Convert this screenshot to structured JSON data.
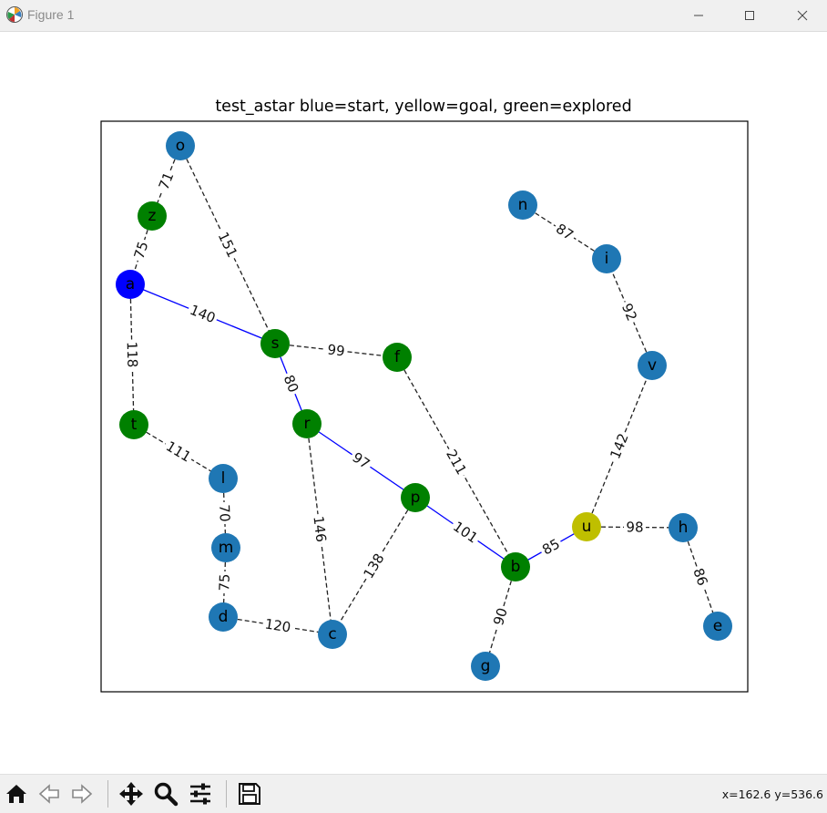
{
  "window": {
    "title": "Figure 1"
  },
  "toolbar": {
    "coords": "x=162.6 y=536.6"
  },
  "figure": {
    "title": "test_astar blue=start, yellow=goal, green=explored",
    "colors": {
      "default": "#1f77b4",
      "start": "#0000ff",
      "goal": "#bfbf00",
      "explored": "#008000",
      "path_edge": "#0000ff",
      "edge": "#222222"
    },
    "nodes": [
      {
        "id": "o",
        "state": "default"
      },
      {
        "id": "z",
        "state": "explored"
      },
      {
        "id": "a",
        "state": "start"
      },
      {
        "id": "s",
        "state": "explored"
      },
      {
        "id": "f",
        "state": "explored"
      },
      {
        "id": "t",
        "state": "explored"
      },
      {
        "id": "r",
        "state": "explored"
      },
      {
        "id": "l",
        "state": "default"
      },
      {
        "id": "m",
        "state": "default"
      },
      {
        "id": "d",
        "state": "default"
      },
      {
        "id": "c",
        "state": "default"
      },
      {
        "id": "p",
        "state": "explored"
      },
      {
        "id": "b",
        "state": "explored"
      },
      {
        "id": "g",
        "state": "default"
      },
      {
        "id": "u",
        "state": "goal"
      },
      {
        "id": "h",
        "state": "default"
      },
      {
        "id": "e",
        "state": "default"
      },
      {
        "id": "n",
        "state": "default"
      },
      {
        "id": "i",
        "state": "default"
      },
      {
        "id": "v",
        "state": "default"
      }
    ],
    "edges": [
      {
        "from": "o",
        "to": "z",
        "weight": "71",
        "path": false
      },
      {
        "from": "z",
        "to": "a",
        "weight": "75",
        "path": false
      },
      {
        "from": "o",
        "to": "s",
        "weight": "151",
        "path": false
      },
      {
        "from": "a",
        "to": "s",
        "weight": "140",
        "path": true
      },
      {
        "from": "a",
        "to": "t",
        "weight": "118",
        "path": false
      },
      {
        "from": "s",
        "to": "f",
        "weight": "99",
        "path": false
      },
      {
        "from": "s",
        "to": "r",
        "weight": "80",
        "path": true
      },
      {
        "from": "t",
        "to": "l",
        "weight": "111",
        "path": false
      },
      {
        "from": "l",
        "to": "m",
        "weight": "70",
        "path": false
      },
      {
        "from": "m",
        "to": "d",
        "weight": "75",
        "path": false
      },
      {
        "from": "d",
        "to": "c",
        "weight": "120",
        "path": false
      },
      {
        "from": "r",
        "to": "c",
        "weight": "146",
        "path": false
      },
      {
        "from": "r",
        "to": "p",
        "weight": "97",
        "path": true
      },
      {
        "from": "p",
        "to": "c",
        "weight": "138",
        "path": false
      },
      {
        "from": "p",
        "to": "b",
        "weight": "101",
        "path": true
      },
      {
        "from": "f",
        "to": "b",
        "weight": "211",
        "path": false
      },
      {
        "from": "b",
        "to": "g",
        "weight": "90",
        "path": false
      },
      {
        "from": "b",
        "to": "u",
        "weight": "85",
        "path": true
      },
      {
        "from": "u",
        "to": "h",
        "weight": "98",
        "path": false
      },
      {
        "from": "h",
        "to": "e",
        "weight": "86",
        "path": false
      },
      {
        "from": "u",
        "to": "v",
        "weight": "142",
        "path": false
      },
      {
        "from": "v",
        "to": "i",
        "weight": "92",
        "path": false
      },
      {
        "from": "i",
        "to": "n",
        "weight": "87",
        "path": false
      }
    ]
  }
}
